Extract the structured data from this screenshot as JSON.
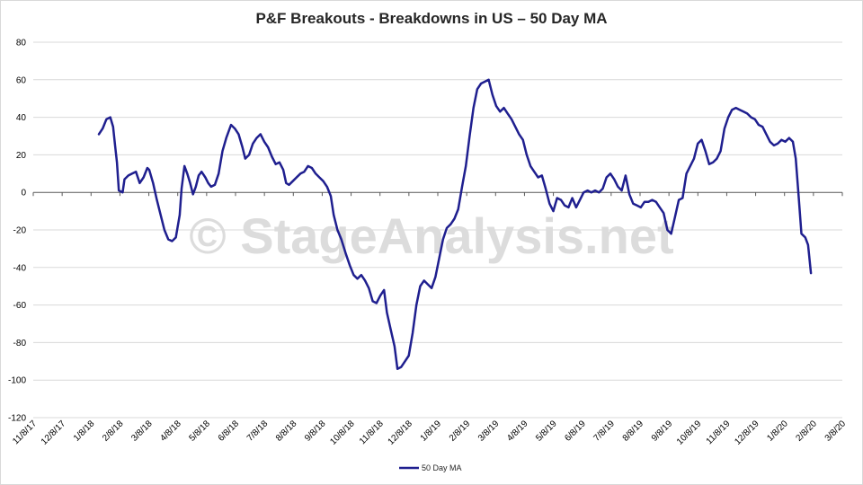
{
  "chart_data": {
    "type": "line",
    "title": "P&F Breakouts - Breakdowns in US – 50 Day MA",
    "watermark": "© StageAnalysis.net",
    "ylim": [
      -120,
      80
    ],
    "yticks": [
      80,
      60,
      40,
      20,
      0,
      -20,
      -40,
      -60,
      -80,
      -100,
      -120
    ],
    "xlim": [
      "2017-11-08",
      "2020-03-08"
    ],
    "xtick_labels": [
      "11/8/17",
      "12/8/17",
      "1/8/18",
      "2/8/18",
      "3/8/18",
      "4/8/18",
      "5/8/18",
      "6/8/18",
      "7/8/18",
      "8/8/18",
      "9/8/18",
      "10/8/18",
      "11/8/18",
      "12/8/18",
      "1/8/19",
      "2/8/19",
      "3/8/19",
      "4/8/19",
      "5/8/19",
      "6/8/19",
      "7/8/19",
      "8/8/19",
      "9/8/19",
      "10/8/19",
      "11/8/19",
      "12/8/19",
      "1/8/20",
      "2/8/20",
      "3/8/20"
    ],
    "grid": true,
    "legend_position": "bottom",
    "line_color": "#1f1f8f",
    "series": [
      {
        "name": "50 Day MA",
        "points": [
          [
            "2018-01-16",
            31
          ],
          [
            "2018-01-20",
            34
          ],
          [
            "2018-01-24",
            39
          ],
          [
            "2018-01-28",
            40
          ],
          [
            "2018-01-31",
            35
          ],
          [
            "2018-02-02",
            25
          ],
          [
            "2018-02-04",
            16
          ],
          [
            "2018-02-06",
            1
          ],
          [
            "2018-02-10",
            0
          ],
          [
            "2018-02-12",
            7
          ],
          [
            "2018-02-16",
            9
          ],
          [
            "2018-02-20",
            10
          ],
          [
            "2018-02-24",
            11
          ],
          [
            "2018-02-28",
            5
          ],
          [
            "2018-03-04",
            8
          ],
          [
            "2018-03-08",
            13
          ],
          [
            "2018-03-10",
            12
          ],
          [
            "2018-03-14",
            5
          ],
          [
            "2018-03-18",
            -4
          ],
          [
            "2018-03-22",
            -12
          ],
          [
            "2018-03-26",
            -20
          ],
          [
            "2018-03-30",
            -25
          ],
          [
            "2018-04-03",
            -26
          ],
          [
            "2018-04-07",
            -24
          ],
          [
            "2018-04-11",
            -12
          ],
          [
            "2018-04-13",
            2
          ],
          [
            "2018-04-16",
            14
          ],
          [
            "2018-04-19",
            10
          ],
          [
            "2018-04-22",
            5
          ],
          [
            "2018-04-25",
            -1
          ],
          [
            "2018-04-28",
            3
          ],
          [
            "2018-05-01",
            9
          ],
          [
            "2018-05-04",
            11
          ],
          [
            "2018-05-08",
            8
          ],
          [
            "2018-05-11",
            5
          ],
          [
            "2018-05-14",
            3
          ],
          [
            "2018-05-18",
            4
          ],
          [
            "2018-05-22",
            10
          ],
          [
            "2018-05-26",
            22
          ],
          [
            "2018-05-30",
            29
          ],
          [
            "2018-06-04",
            36
          ],
          [
            "2018-06-08",
            34
          ],
          [
            "2018-06-12",
            31
          ],
          [
            "2018-06-16",
            24
          ],
          [
            "2018-06-19",
            18
          ],
          [
            "2018-06-23",
            20
          ],
          [
            "2018-06-27",
            26
          ],
          [
            "2018-07-01",
            29
          ],
          [
            "2018-07-05",
            31
          ],
          [
            "2018-07-09",
            27
          ],
          [
            "2018-07-13",
            24
          ],
          [
            "2018-07-17",
            19
          ],
          [
            "2018-07-21",
            15
          ],
          [
            "2018-07-25",
            16
          ],
          [
            "2018-07-29",
            12
          ],
          [
            "2018-08-01",
            5
          ],
          [
            "2018-08-04",
            4
          ],
          [
            "2018-08-08",
            6
          ],
          [
            "2018-08-12",
            8
          ],
          [
            "2018-08-16",
            10
          ],
          [
            "2018-08-20",
            11
          ],
          [
            "2018-08-24",
            14
          ],
          [
            "2018-08-28",
            13
          ],
          [
            "2018-09-01",
            10
          ],
          [
            "2018-09-05",
            8
          ],
          [
            "2018-09-09",
            6
          ],
          [
            "2018-09-13",
            3
          ],
          [
            "2018-09-17",
            -2
          ],
          [
            "2018-09-20",
            -12
          ],
          [
            "2018-09-24",
            -20
          ],
          [
            "2018-09-28",
            -25
          ],
          [
            "2018-10-03",
            -33
          ],
          [
            "2018-10-07",
            -39
          ],
          [
            "2018-10-11",
            -44
          ],
          [
            "2018-10-15",
            -46
          ],
          [
            "2018-10-19",
            -44
          ],
          [
            "2018-10-23",
            -47
          ],
          [
            "2018-10-27",
            -51
          ],
          [
            "2018-10-31",
            -58
          ],
          [
            "2018-11-04",
            -59
          ],
          [
            "2018-11-08",
            -55
          ],
          [
            "2018-11-12",
            -52
          ],
          [
            "2018-11-15",
            -64
          ],
          [
            "2018-11-19",
            -73
          ],
          [
            "2018-11-23",
            -82
          ],
          [
            "2018-11-26",
            -94
          ],
          [
            "2018-11-30",
            -93
          ],
          [
            "2018-12-04",
            -90
          ],
          [
            "2018-12-08",
            -87
          ],
          [
            "2018-12-12",
            -75
          ],
          [
            "2018-12-16",
            -60
          ],
          [
            "2018-12-20",
            -50
          ],
          [
            "2018-12-24",
            -47
          ],
          [
            "2018-12-28",
            -49
          ],
          [
            "2019-01-01",
            -51
          ],
          [
            "2019-01-05",
            -45
          ],
          [
            "2019-01-09",
            -35
          ],
          [
            "2019-01-13",
            -25
          ],
          [
            "2019-01-17",
            -19
          ],
          [
            "2019-01-21",
            -17
          ],
          [
            "2019-01-25",
            -14
          ],
          [
            "2019-01-29",
            -9
          ],
          [
            "2019-02-02",
            3
          ],
          [
            "2019-02-06",
            14
          ],
          [
            "2019-02-10",
            30
          ],
          [
            "2019-02-14",
            45
          ],
          [
            "2019-02-18",
            55
          ],
          [
            "2019-02-22",
            58
          ],
          [
            "2019-02-26",
            59
          ],
          [
            "2019-03-02",
            60
          ],
          [
            "2019-03-06",
            52
          ],
          [
            "2019-03-10",
            46
          ],
          [
            "2019-03-14",
            43
          ],
          [
            "2019-03-18",
            45
          ],
          [
            "2019-03-22",
            42
          ],
          [
            "2019-03-26",
            39
          ],
          [
            "2019-03-30",
            35
          ],
          [
            "2019-04-03",
            31
          ],
          [
            "2019-04-07",
            28
          ],
          [
            "2019-04-11",
            20
          ],
          [
            "2019-04-15",
            14
          ],
          [
            "2019-04-19",
            11
          ],
          [
            "2019-04-23",
            8
          ],
          [
            "2019-04-27",
            9
          ],
          [
            "2019-05-01",
            2
          ],
          [
            "2019-05-05",
            -6
          ],
          [
            "2019-05-09",
            -10
          ],
          [
            "2019-05-13",
            -3
          ],
          [
            "2019-05-17",
            -4
          ],
          [
            "2019-05-21",
            -7
          ],
          [
            "2019-05-25",
            -8
          ],
          [
            "2019-05-29",
            -3
          ],
          [
            "2019-06-02",
            -8
          ],
          [
            "2019-06-06",
            -4
          ],
          [
            "2019-06-10",
            0
          ],
          [
            "2019-06-14",
            1
          ],
          [
            "2019-06-18",
            0
          ],
          [
            "2019-06-22",
            1
          ],
          [
            "2019-06-26",
            0
          ],
          [
            "2019-06-30",
            2
          ],
          [
            "2019-07-04",
            8
          ],
          [
            "2019-07-08",
            10
          ],
          [
            "2019-07-12",
            7
          ],
          [
            "2019-07-16",
            3
          ],
          [
            "2019-07-20",
            1
          ],
          [
            "2019-07-24",
            9
          ],
          [
            "2019-07-28",
            -1
          ],
          [
            "2019-08-01",
            -6
          ],
          [
            "2019-08-05",
            -7
          ],
          [
            "2019-08-09",
            -8
          ],
          [
            "2019-08-13",
            -5
          ],
          [
            "2019-08-17",
            -5
          ],
          [
            "2019-08-21",
            -4
          ],
          [
            "2019-08-25",
            -5
          ],
          [
            "2019-08-29",
            -8
          ],
          [
            "2019-09-02",
            -11
          ],
          [
            "2019-09-06",
            -20
          ],
          [
            "2019-09-10",
            -22
          ],
          [
            "2019-09-14",
            -13
          ],
          [
            "2019-09-18",
            -4
          ],
          [
            "2019-09-22",
            -3
          ],
          [
            "2019-09-26",
            10
          ],
          [
            "2019-09-30",
            14
          ],
          [
            "2019-10-04",
            18
          ],
          [
            "2019-10-08",
            26
          ],
          [
            "2019-10-12",
            28
          ],
          [
            "2019-10-16",
            22
          ],
          [
            "2019-10-20",
            15
          ],
          [
            "2019-10-24",
            16
          ],
          [
            "2019-10-28",
            18
          ],
          [
            "2019-11-01",
            22
          ],
          [
            "2019-11-05",
            34
          ],
          [
            "2019-11-09",
            40
          ],
          [
            "2019-11-13",
            44
          ],
          [
            "2019-11-17",
            45
          ],
          [
            "2019-11-21",
            44
          ],
          [
            "2019-11-25",
            43
          ],
          [
            "2019-11-29",
            42
          ],
          [
            "2019-12-03",
            40
          ],
          [
            "2019-12-07",
            39
          ],
          [
            "2019-12-11",
            36
          ],
          [
            "2019-12-15",
            35
          ],
          [
            "2019-12-19",
            31
          ],
          [
            "2019-12-23",
            27
          ],
          [
            "2019-12-27",
            25
          ],
          [
            "2019-12-31",
            26
          ],
          [
            "2020-01-04",
            28
          ],
          [
            "2020-01-08",
            27
          ],
          [
            "2020-01-12",
            29
          ],
          [
            "2020-01-16",
            27
          ],
          [
            "2020-01-19",
            18
          ],
          [
            "2020-01-22",
            -2
          ],
          [
            "2020-01-25",
            -22
          ],
          [
            "2020-01-29",
            -24
          ],
          [
            "2020-02-01",
            -28
          ],
          [
            "2020-02-04",
            -43
          ]
        ]
      }
    ]
  }
}
